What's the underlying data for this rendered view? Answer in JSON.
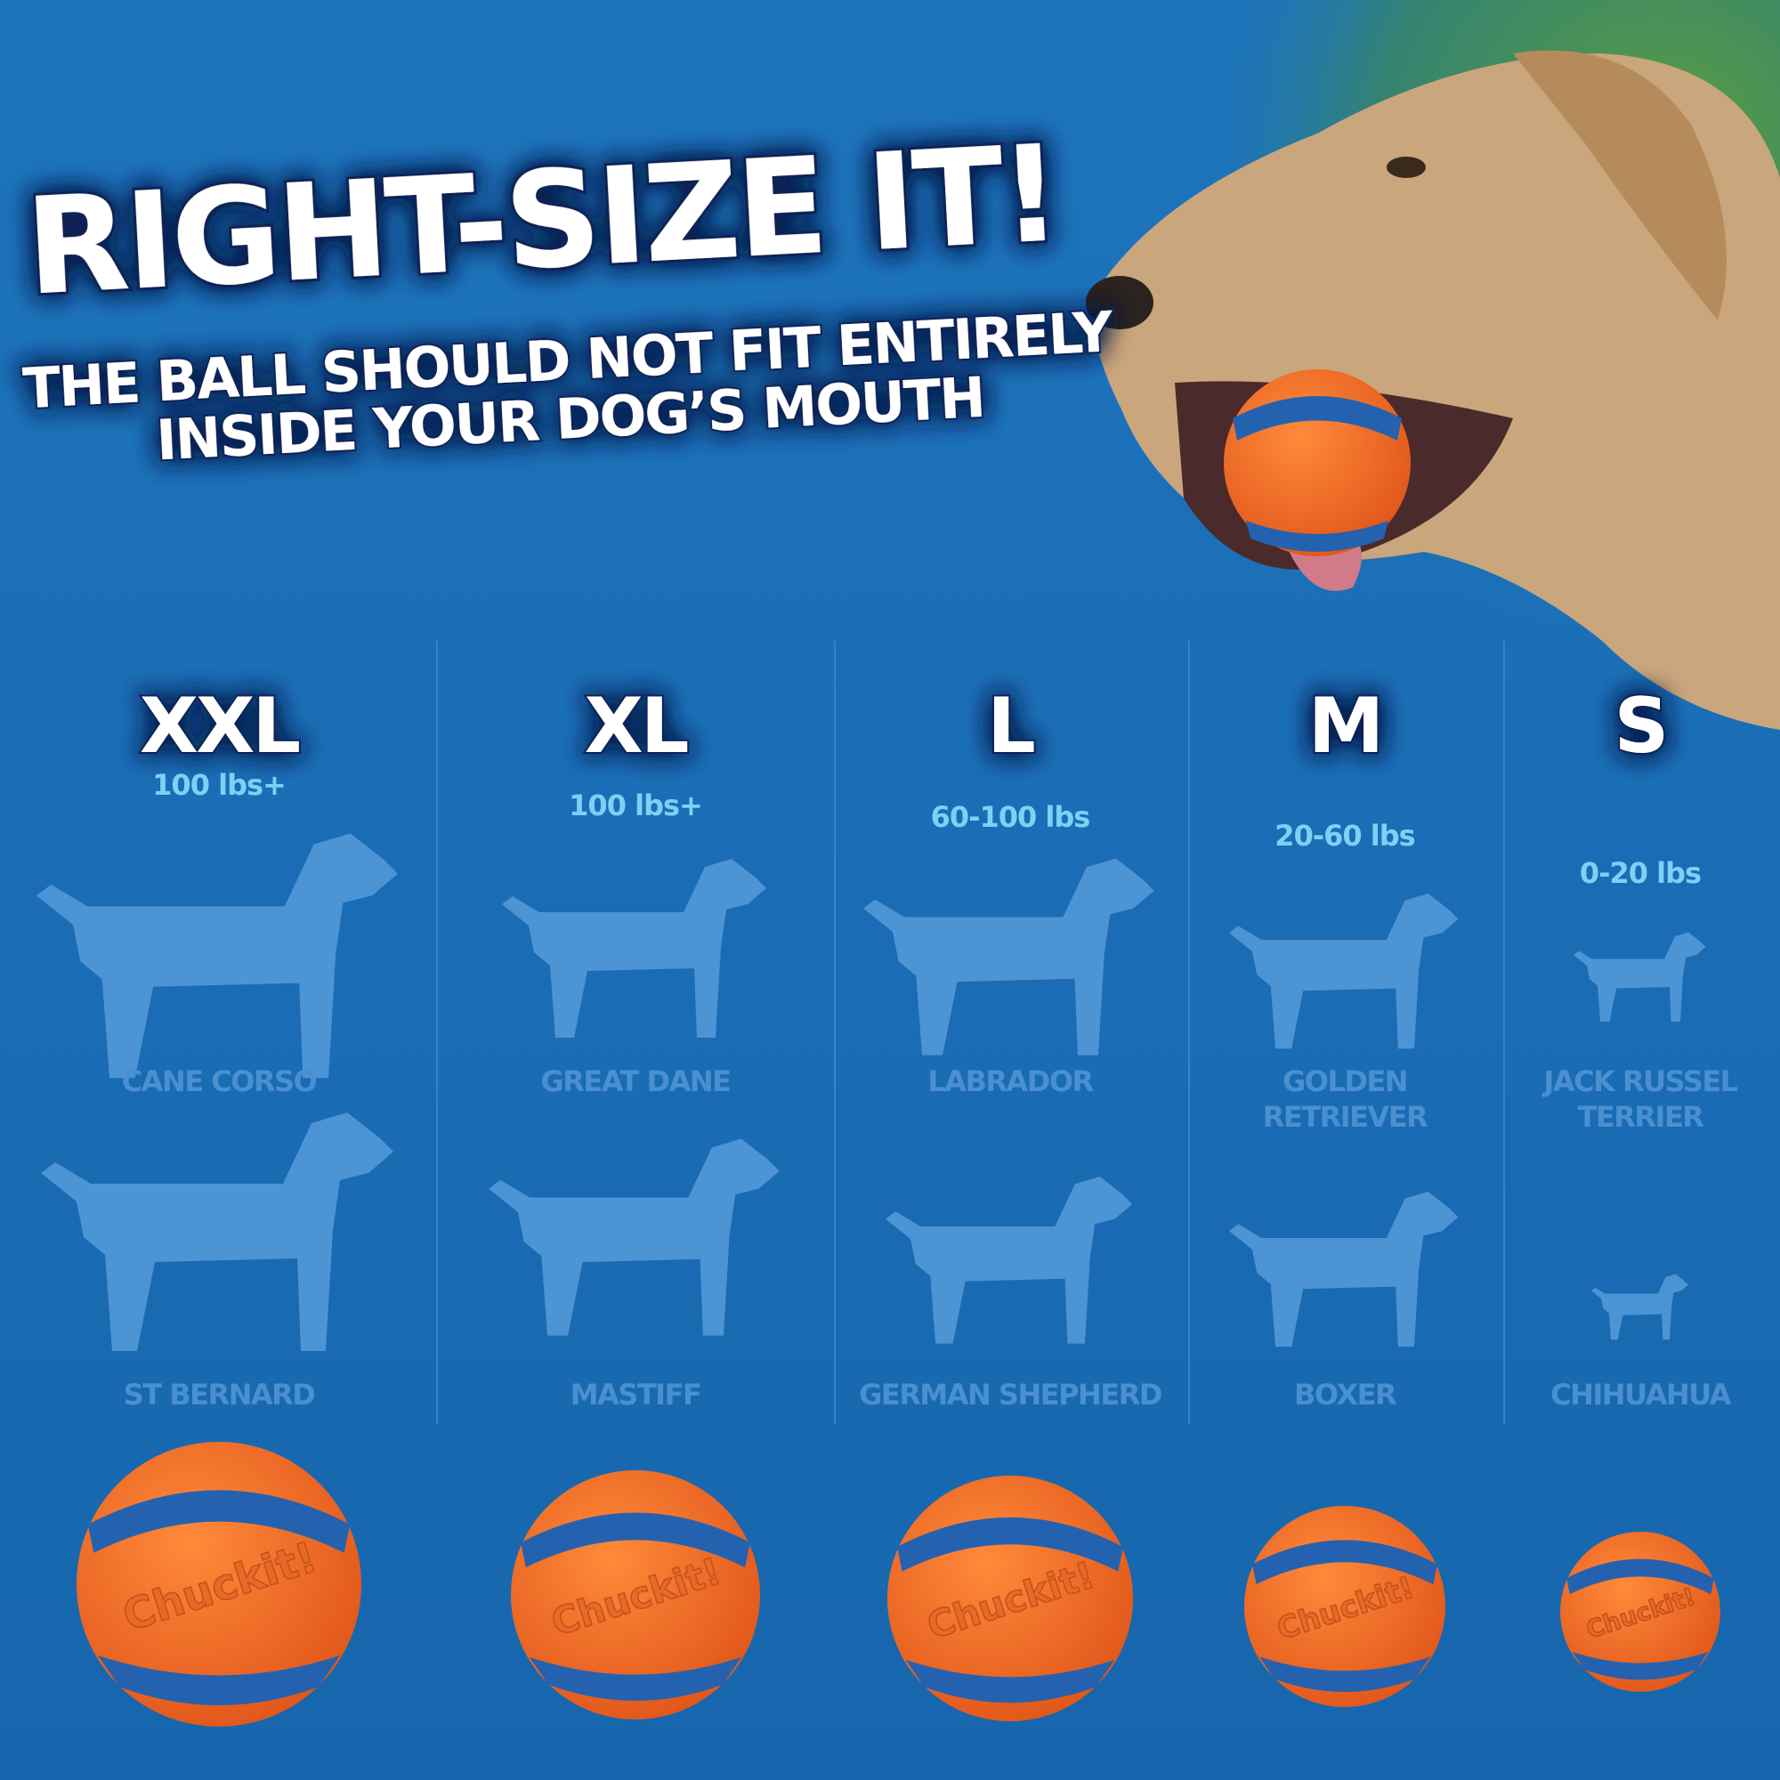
{
  "header": {
    "title": "RIGHT-SIZE IT!",
    "subtitle_lines": [
      "THE BALL SHOULD NOT FIT ENTIRELY",
      "INSIDE YOUR DOG’S MOUTH"
    ]
  },
  "ball_brand": "Chuckit!",
  "sizes": [
    {
      "size": "XXL",
      "weight": "100 lbs+",
      "breeds": [
        [
          "CANE CORSO"
        ],
        [
          "ST BERNARD"
        ]
      ]
    },
    {
      "size": "XL",
      "weight": "100 lbs+",
      "breeds": [
        [
          "GREAT DANE"
        ],
        [
          "MASTIFF"
        ]
      ]
    },
    {
      "size": "L",
      "weight": "60-100 lbs",
      "breeds": [
        [
          "LABRADOR"
        ],
        [
          "GERMAN SHEPHERD"
        ]
      ]
    },
    {
      "size": "M",
      "weight": "20-60 lbs",
      "breeds": [
        [
          "GOLDEN",
          "RETRIEVER"
        ],
        [
          "BOXER"
        ]
      ]
    },
    {
      "size": "S",
      "weight": "0-20 lbs",
      "breeds": [
        [
          "JACK RUSSEL",
          "TERRIER"
        ],
        [
          "CHIHUAHUA"
        ]
      ]
    }
  ]
}
